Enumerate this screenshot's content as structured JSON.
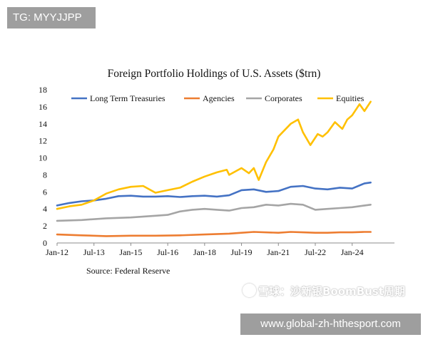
{
  "header_tag": "TG: MYYJJPP",
  "footer_url": "www.global-zh-hthesport.com",
  "watermark": {
    "prefix": "雪球：",
    "name": "沙新银BoomBust周期"
  },
  "chart_data": {
    "type": "line",
    "title": "Foreign Portfolio Holdings of U.S. Assets ($trn)",
    "source": "Source: Federal Reserve",
    "xlabel": "",
    "ylabel": "",
    "ylim": [
      0,
      18
    ],
    "yticks": [
      0,
      2,
      4,
      6,
      8,
      10,
      12,
      14,
      16,
      18
    ],
    "xlim": [
      2012.0,
      2024.85
    ],
    "xticks": [
      {
        "label": "Jan-12",
        "value": 2012.0
      },
      {
        "label": "Jul-13",
        "value": 2013.5
      },
      {
        "label": "Jan-15",
        "value": 2015.0
      },
      {
        "label": "Jul-16",
        "value": 2016.5
      },
      {
        "label": "Jan-18",
        "value": 2018.0
      },
      {
        "label": "Jul-19",
        "value": 2019.5
      },
      {
        "label": "Jan-21",
        "value": 2021.0
      },
      {
        "label": "Jul-22",
        "value": 2022.5
      },
      {
        "label": "Jan-24",
        "value": 2024.0
      }
    ],
    "grid": false,
    "legend_position": "top",
    "series": [
      {
        "name": "Long Term Treasuries",
        "color": "#4472c4",
        "x": [
          2012.0,
          2012.5,
          2013.0,
          2013.5,
          2014.0,
          2014.5,
          2015.0,
          2015.5,
          2016.0,
          2016.5,
          2017.0,
          2017.5,
          2018.0,
          2018.5,
          2019.0,
          2019.5,
          2020.0,
          2020.5,
          2021.0,
          2021.5,
          2022.0,
          2022.5,
          2023.0,
          2023.5,
          2024.0,
          2024.5,
          2024.75
        ],
        "y": [
          4.4,
          4.7,
          4.9,
          5.0,
          5.2,
          5.5,
          5.55,
          5.45,
          5.45,
          5.5,
          5.4,
          5.5,
          5.55,
          5.45,
          5.6,
          6.2,
          6.3,
          6.0,
          6.1,
          6.6,
          6.7,
          6.4,
          6.3,
          6.5,
          6.4,
          7.0,
          7.1
        ]
      },
      {
        "name": "Agencies",
        "color": "#ed7d31",
        "x": [
          2012.0,
          2013.0,
          2014.0,
          2015.0,
          2016.0,
          2017.0,
          2018.0,
          2019.0,
          2019.5,
          2020.0,
          2021.0,
          2021.5,
          2022.0,
          2022.5,
          2023.0,
          2023.5,
          2024.0,
          2024.5,
          2024.75
        ],
        "y": [
          1.0,
          0.9,
          0.8,
          0.85,
          0.85,
          0.9,
          1.0,
          1.1,
          1.2,
          1.3,
          1.2,
          1.3,
          1.25,
          1.2,
          1.2,
          1.25,
          1.25,
          1.3,
          1.3
        ]
      },
      {
        "name": "Corporates",
        "color": "#a5a5a5",
        "x": [
          2012.0,
          2013.0,
          2014.0,
          2015.0,
          2016.0,
          2016.5,
          2017.0,
          2017.5,
          2018.0,
          2018.5,
          2019.0,
          2019.5,
          2020.0,
          2020.5,
          2021.0,
          2021.5,
          2022.0,
          2022.5,
          2023.0,
          2023.5,
          2024.0,
          2024.5,
          2024.75
        ],
        "y": [
          2.6,
          2.7,
          2.9,
          3.0,
          3.2,
          3.3,
          3.7,
          3.9,
          4.0,
          3.9,
          3.8,
          4.1,
          4.2,
          4.5,
          4.4,
          4.6,
          4.5,
          3.9,
          4.0,
          4.1,
          4.2,
          4.4,
          4.5
        ]
      },
      {
        "name": "Equities",
        "color": "#ffc000",
        "x": [
          2012.0,
          2012.5,
          2013.0,
          2013.5,
          2014.0,
          2014.5,
          2015.0,
          2015.5,
          2016.0,
          2016.5,
          2017.0,
          2017.5,
          2018.0,
          2018.5,
          2018.9,
          2019.0,
          2019.5,
          2019.8,
          2020.0,
          2020.2,
          2020.5,
          2020.8,
          2021.0,
          2021.5,
          2021.8,
          2022.0,
          2022.3,
          2022.6,
          2022.8,
          2023.0,
          2023.3,
          2023.6,
          2023.8,
          2024.0,
          2024.3,
          2024.5,
          2024.75
        ],
        "y": [
          4.0,
          4.3,
          4.5,
          5.0,
          5.8,
          6.3,
          6.6,
          6.7,
          5.9,
          6.2,
          6.5,
          7.2,
          7.8,
          8.3,
          8.6,
          8.0,
          8.8,
          8.2,
          8.8,
          7.4,
          9.5,
          11.0,
          12.5,
          14.0,
          14.5,
          13.0,
          11.5,
          12.8,
          12.5,
          13.0,
          14.2,
          13.4,
          14.5,
          15.0,
          16.3,
          15.5,
          16.6
        ]
      }
    ]
  }
}
